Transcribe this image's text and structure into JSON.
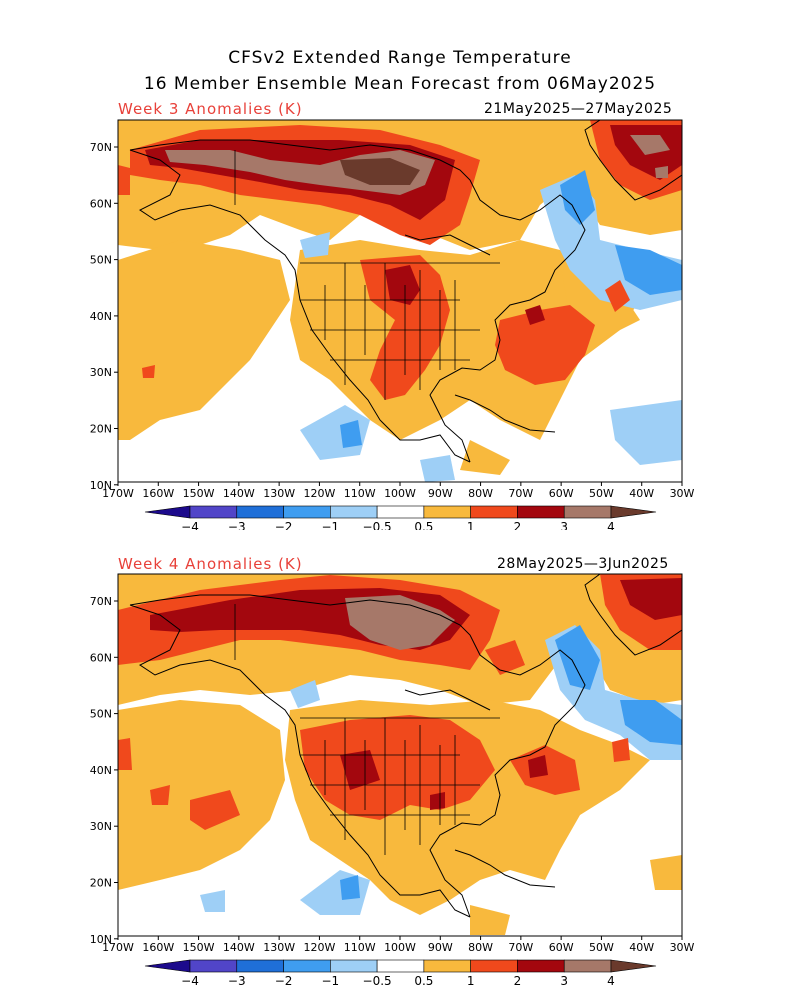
{
  "header": {
    "title_line1": "CFSv2 Extended Range Temperature",
    "title_line2": "16 Member Ensemble Mean Forecast from 06May2025"
  },
  "panels": [
    {
      "label": "Week 3 Anomalies (K)",
      "dates": "21May2025—27May2025"
    },
    {
      "label": "Week 4 Anomalies (K)",
      "dates": "28May2025—3Jun2025"
    }
  ],
  "lat_labels": [
    "70N",
    "60N",
    "50N",
    "40N",
    "30N",
    "20N",
    "10N"
  ],
  "lon_labels": [
    "170W",
    "160W",
    "150W",
    "140W",
    "130W",
    "120W",
    "110W",
    "100W",
    "90W",
    "80W",
    "70W",
    "60W",
    "50W",
    "40W",
    "30W"
  ],
  "colorbar": {
    "colors": [
      "#1c0a8c",
      "#5145c8",
      "#1f6fd8",
      "#3f9df0",
      "#9ecff6",
      "#ffffff",
      "#f8b93d",
      "#f0491c",
      "#a3070e",
      "#a67869",
      "#6a3a2c"
    ],
    "labels": [
      "−4",
      "−3",
      "−2",
      "−1",
      "−0.5",
      "0.5",
      "1",
      "2",
      "3",
      "4"
    ]
  },
  "colors": {
    "label_red": "#e8413a",
    "frame": "#000000"
  }
}
